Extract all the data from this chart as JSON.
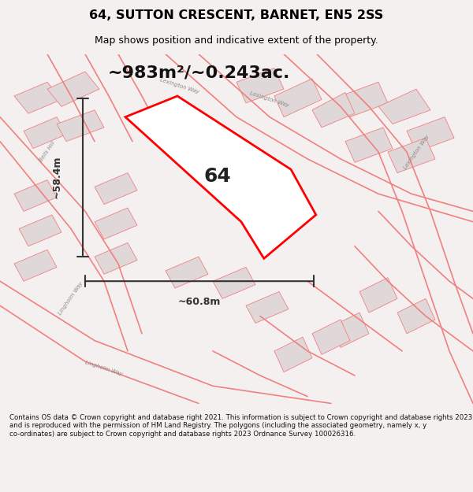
{
  "title": "64, SUTTON CRESCENT, BARNET, EN5 2SS",
  "subtitle": "Map shows position and indicative extent of the property.",
  "area_text": "~983m²/~0.243ac.",
  "label_64": "64",
  "dim_width": "~60.8m",
  "dim_height": "~58.4m",
  "footer": "Contains OS data © Crown copyright and database right 2021. This information is subject to Crown copyright and database rights 2023 and is reproduced with the permission of HM Land Registry. The polygons (including the associated geometry, namely x, y co-ordinates) are subject to Crown copyright and database rights 2023 Ordnance Survey 100026316.",
  "bg_color": "#f5f0f0",
  "map_bg": "#ffffff",
  "plot_color": "#ff0000",
  "road_color": "#f08080",
  "building_color": "#e8e0e0",
  "dim_line_color": "#333333",
  "title_color": "#000000",
  "footer_bg": "#ffffff",
  "road_stroke": "#c87070"
}
